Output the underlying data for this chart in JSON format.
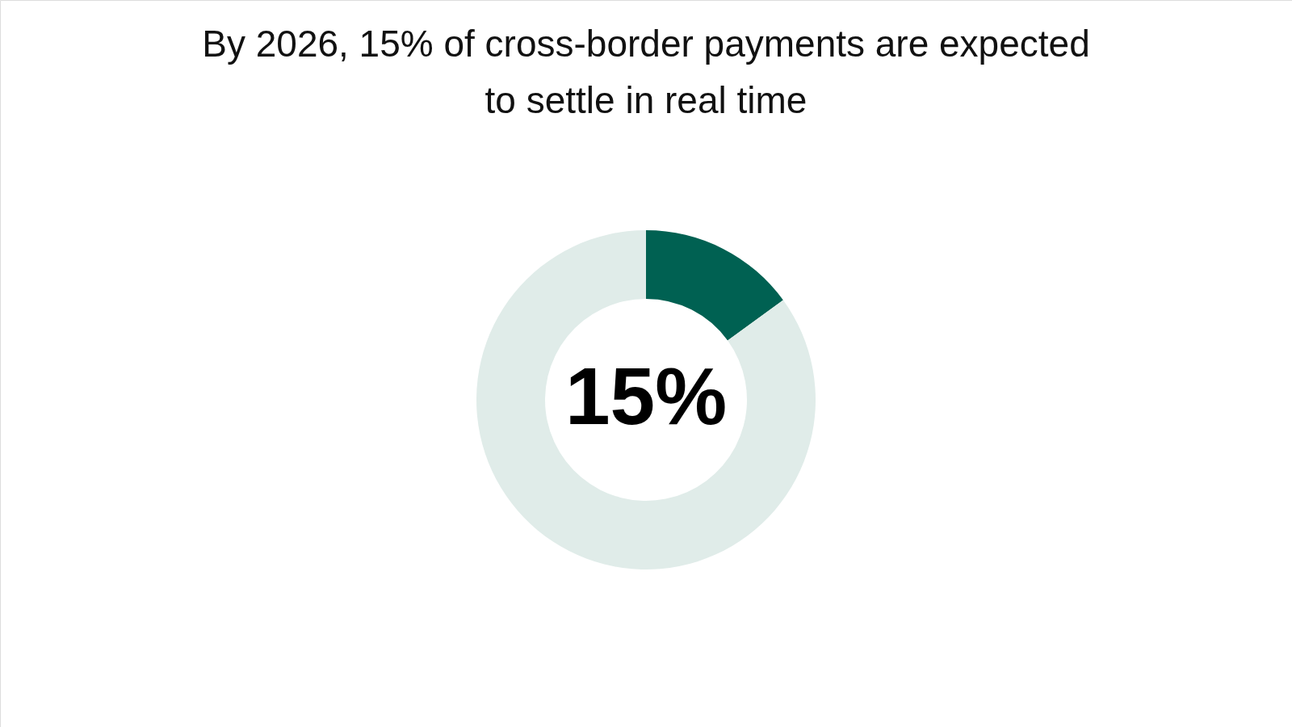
{
  "chart_data": {
    "type": "donut",
    "title": "By 2026, 15% of cross-border payments are expected to settle in real time",
    "categories": [
      null,
      null
    ],
    "values": [
      15,
      85
    ],
    "colors": [
      "#006152",
      "#e0ece9"
    ],
    "value_labels": [
      "15%",
      null
    ],
    "legend": false
  }
}
